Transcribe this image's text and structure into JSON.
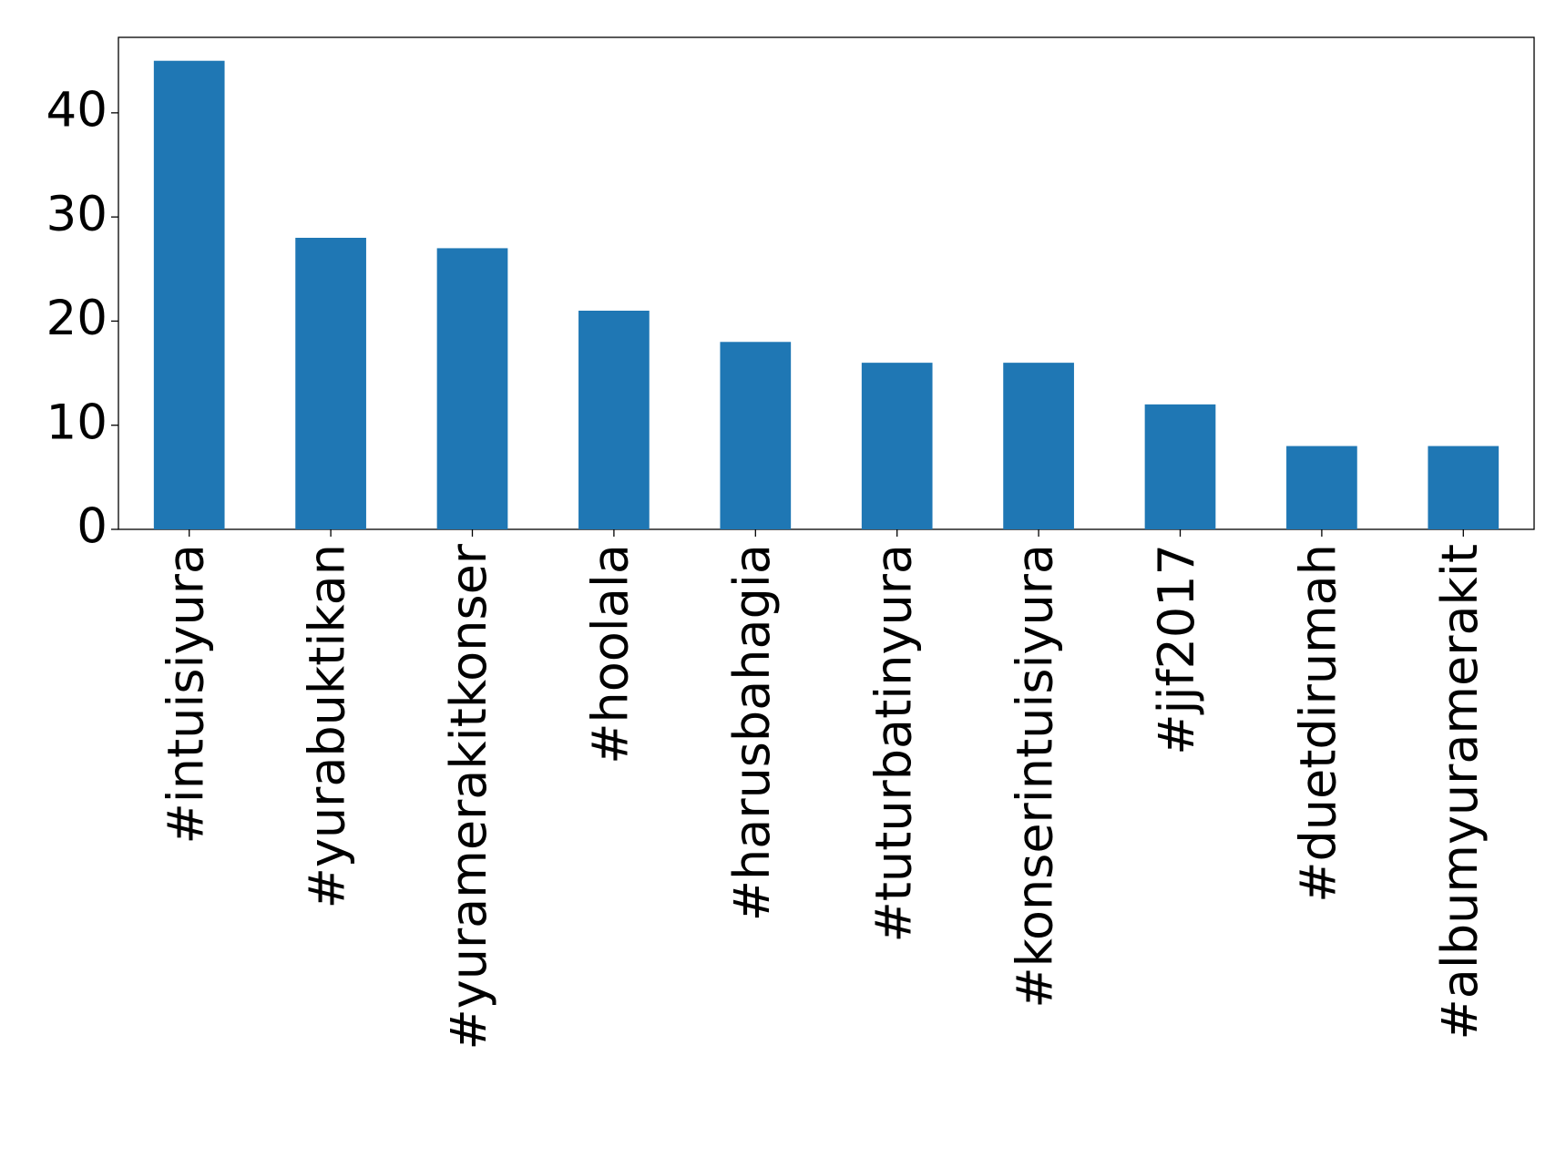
{
  "chart_data": {
    "type": "bar",
    "categories": [
      "#intuisiyura",
      "#yurabuktikan",
      "#yuramerakitkonser",
      "#hoolala",
      "#harusbahagia",
      "#tuturbatinyura",
      "#konserintuisiyura",
      "#jjf2017",
      "#duetdirumah",
      "#albumyuramerakit"
    ],
    "values": [
      45,
      28,
      27,
      21,
      18,
      16,
      16,
      12,
      8,
      8
    ],
    "color": "#1f77b4",
    "ylim": [
      0,
      47.25
    ],
    "yticks": [
      0,
      10,
      20,
      30,
      40
    ],
    "grid": false
  }
}
